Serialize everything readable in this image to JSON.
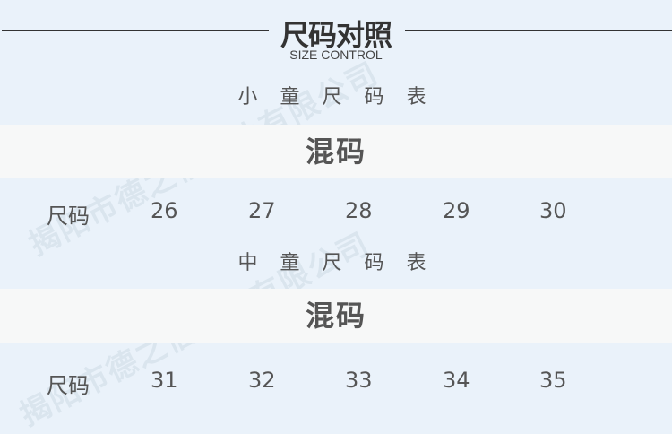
{
  "header": {
    "title": "尺码对照",
    "subtitle": "SIZE CONTROL"
  },
  "tables": [
    {
      "title": "小 童 尺 码 表",
      "type": "混码",
      "row_label": "尺码",
      "sizes": [
        "26",
        "27",
        "28",
        "29",
        "30"
      ]
    },
    {
      "title": "中 童 尺 码 表",
      "type": "混码",
      "row_label": "尺码",
      "sizes": [
        "31",
        "32",
        "33",
        "34",
        "35"
      ]
    }
  ],
  "watermark": "揭阳市德之信鞋业有限公司"
}
